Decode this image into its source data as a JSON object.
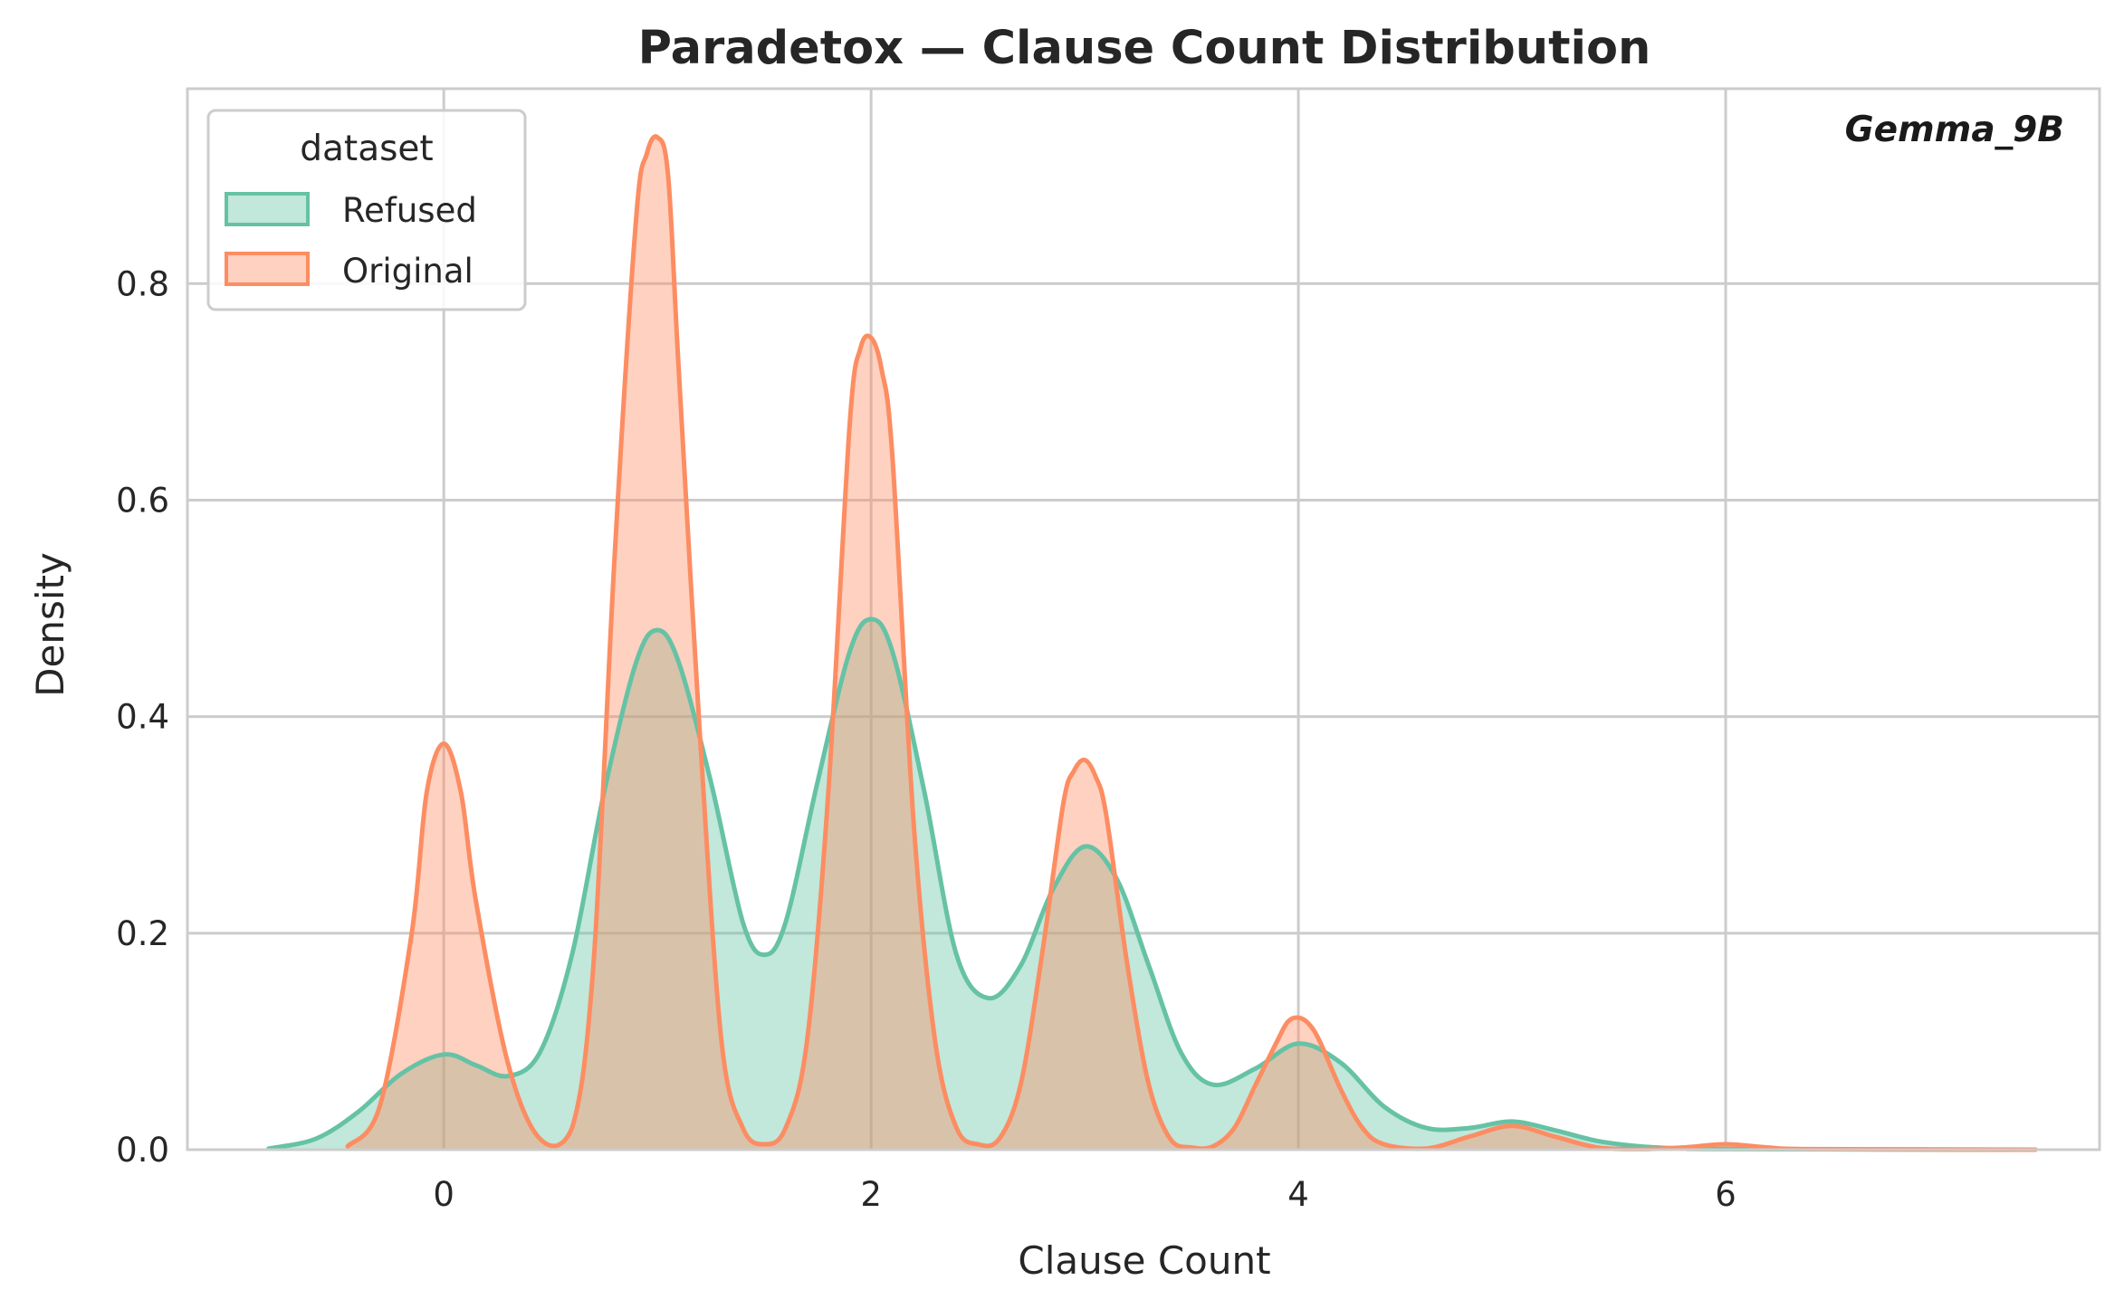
{
  "colors": {
    "refused": "#66c2a5",
    "original": "#fc8d62",
    "grid": "#cccccc",
    "frame": "#cccccc",
    "background": "#ffffff"
  },
  "chart_data": {
    "type": "area",
    "title": "Paradetox — Clause Count Distribution",
    "xlabel": "Clause Count",
    "ylabel": "Density",
    "xlim": [
      -1.2,
      7.75
    ],
    "ylim": [
      0,
      0.98
    ],
    "xticks": [
      0,
      2,
      4,
      6
    ],
    "yticks": [
      0.0,
      0.2,
      0.4,
      0.6,
      0.8
    ],
    "xtick_labels": [
      "0",
      "2",
      "4",
      "6"
    ],
    "ytick_labels": [
      "0.0",
      "0.2",
      "0.4",
      "0.6",
      "0.8"
    ],
    "grid": true,
    "legend_title": "dataset",
    "legend_position": "top-left",
    "annotation": "Gemma_9B",
    "annotation_position": "top-right",
    "series": [
      {
        "name": "Refused",
        "color": "#66c2a5",
        "x": [
          -0.82,
          -0.6,
          -0.4,
          -0.2,
          0.0,
          0.15,
          0.3,
          0.45,
          0.6,
          0.75,
          0.9,
          1.0,
          1.1,
          1.25,
          1.4,
          1.5,
          1.6,
          1.75,
          1.9,
          2.0,
          2.1,
          2.25,
          2.4,
          2.55,
          2.7,
          2.85,
          3.0,
          3.15,
          3.3,
          3.45,
          3.6,
          3.8,
          4.0,
          4.2,
          4.4,
          4.6,
          4.8,
          5.0,
          5.2,
          5.4,
          5.6,
          5.8,
          6.0,
          7.45
        ],
        "values": [
          0.001,
          0.01,
          0.035,
          0.07,
          0.088,
          0.078,
          0.068,
          0.09,
          0.18,
          0.33,
          0.45,
          0.48,
          0.45,
          0.34,
          0.21,
          0.18,
          0.21,
          0.34,
          0.46,
          0.49,
          0.46,
          0.33,
          0.18,
          0.14,
          0.17,
          0.24,
          0.28,
          0.25,
          0.17,
          0.09,
          0.06,
          0.075,
          0.098,
          0.08,
          0.04,
          0.02,
          0.02,
          0.026,
          0.018,
          0.008,
          0.003,
          0.001,
          0.0005,
          0.0
        ]
      },
      {
        "name": "Original",
        "color": "#fc8d62",
        "x": [
          -0.45,
          -0.3,
          -0.15,
          -0.08,
          0.0,
          0.08,
          0.15,
          0.3,
          0.45,
          0.6,
          0.7,
          0.8,
          0.9,
          0.95,
          1.0,
          1.05,
          1.1,
          1.2,
          1.3,
          1.4,
          1.5,
          1.6,
          1.7,
          1.8,
          1.9,
          1.95,
          2.0,
          2.05,
          2.1,
          2.2,
          2.3,
          2.4,
          2.5,
          2.6,
          2.7,
          2.8,
          2.9,
          2.95,
          3.0,
          3.05,
          3.1,
          3.2,
          3.3,
          3.4,
          3.5,
          3.6,
          3.7,
          3.8,
          3.9,
          3.95,
          4.0,
          4.05,
          4.1,
          4.2,
          4.3,
          4.4,
          4.6,
          4.8,
          5.0,
          5.2,
          5.4,
          5.6,
          5.8,
          6.0,
          6.2,
          6.4,
          7.45
        ],
        "values": [
          0.003,
          0.04,
          0.2,
          0.33,
          0.375,
          0.33,
          0.23,
          0.08,
          0.01,
          0.02,
          0.17,
          0.55,
          0.86,
          0.92,
          0.935,
          0.9,
          0.72,
          0.38,
          0.1,
          0.02,
          0.005,
          0.02,
          0.1,
          0.33,
          0.67,
          0.74,
          0.75,
          0.72,
          0.64,
          0.3,
          0.1,
          0.02,
          0.005,
          0.01,
          0.06,
          0.18,
          0.32,
          0.35,
          0.36,
          0.345,
          0.31,
          0.17,
          0.06,
          0.01,
          0.002,
          0.003,
          0.02,
          0.06,
          0.1,
          0.118,
          0.122,
          0.116,
          0.1,
          0.055,
          0.02,
          0.005,
          0.001,
          0.012,
          0.022,
          0.012,
          0.002,
          0.0005,
          0.002,
          0.005,
          0.002,
          0.0005,
          0.0
        ]
      }
    ]
  }
}
